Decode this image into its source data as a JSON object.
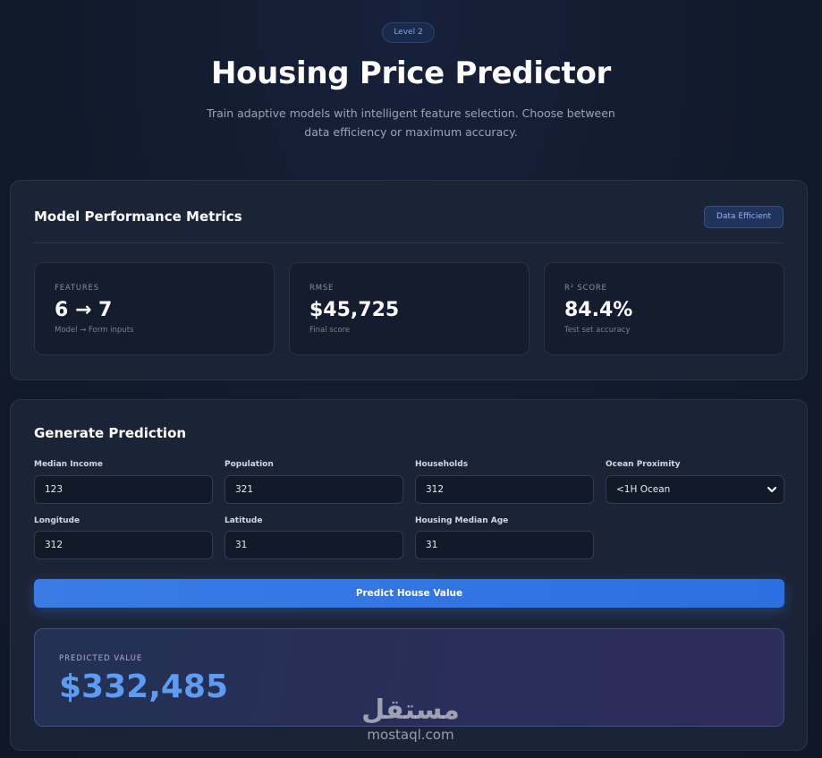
{
  "hero": {
    "level_badge": "Level 2",
    "title": "Housing Price Predictor",
    "subtitle": "Train adaptive models with intelligent feature selection. Choose between data efficiency or maximum accuracy."
  },
  "metrics": {
    "title": "Model Performance Metrics",
    "mode_badge": "Data Efficient",
    "cards": [
      {
        "label": "FEATURES",
        "value": "6 → 7",
        "note": "Model → Form inputs"
      },
      {
        "label": "RMSE",
        "value": "$45,725",
        "note": "Final score"
      },
      {
        "label": "R² SCORE",
        "value": "84.4%",
        "note": "Test set accuracy"
      }
    ]
  },
  "prediction": {
    "title": "Generate Prediction",
    "fields": {
      "median_income": {
        "label": "Median Income",
        "value": "123"
      },
      "population": {
        "label": "Population",
        "value": "321"
      },
      "households": {
        "label": "Households",
        "value": "312"
      },
      "ocean_proximity": {
        "label": "Ocean Proximity",
        "value": "<1H Ocean"
      },
      "longitude": {
        "label": "Longitude",
        "value": "312"
      },
      "latitude": {
        "label": "Latitude",
        "value": "31"
      },
      "housing_median_age": {
        "label": "Housing Median Age",
        "value": "31"
      }
    },
    "button_label": "Predict House Value",
    "result_label": "PREDICTED VALUE",
    "result_value": "$332,485"
  },
  "watermark": {
    "arabic": "مستقل",
    "latin": "mostaql.com"
  },
  "icons": {
    "select": "chevron-down-icon"
  }
}
